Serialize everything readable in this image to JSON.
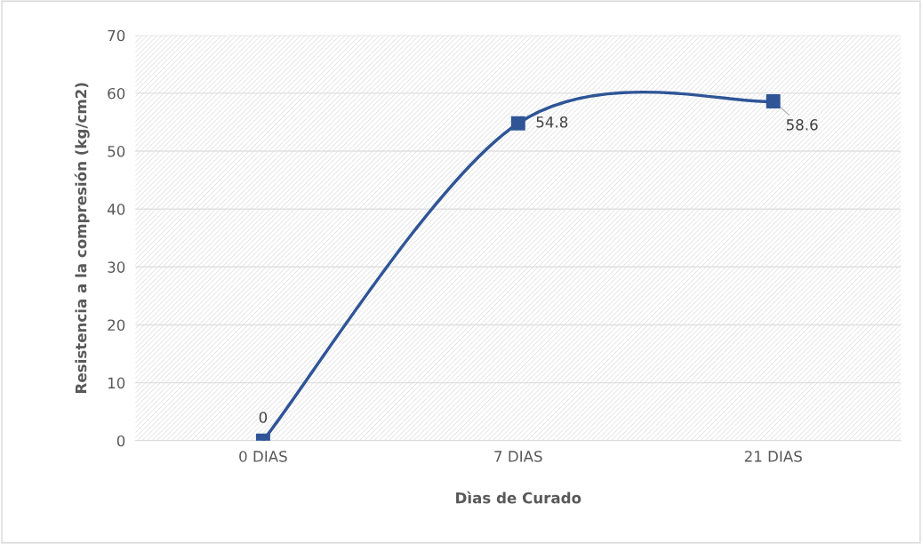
{
  "chart_data": {
    "type": "line",
    "xlabel": "Dìas de Curado",
    "ylabel": "Resistencia a la compresión (kg/cm2)",
    "categories": [
      "0 DIAS",
      "7 DIAS",
      "21 DIAS"
    ],
    "series": [
      {
        "color": "#2f5597",
        "values": [
          0,
          54.8,
          58.6
        ]
      }
    ],
    "ylim": [
      0,
      70
    ],
    "yticks": [
      0,
      10,
      20,
      30,
      40,
      50,
      60,
      70
    ],
    "grid": "y",
    "marker": "square",
    "line_style": "solid",
    "data_labels": true
  }
}
